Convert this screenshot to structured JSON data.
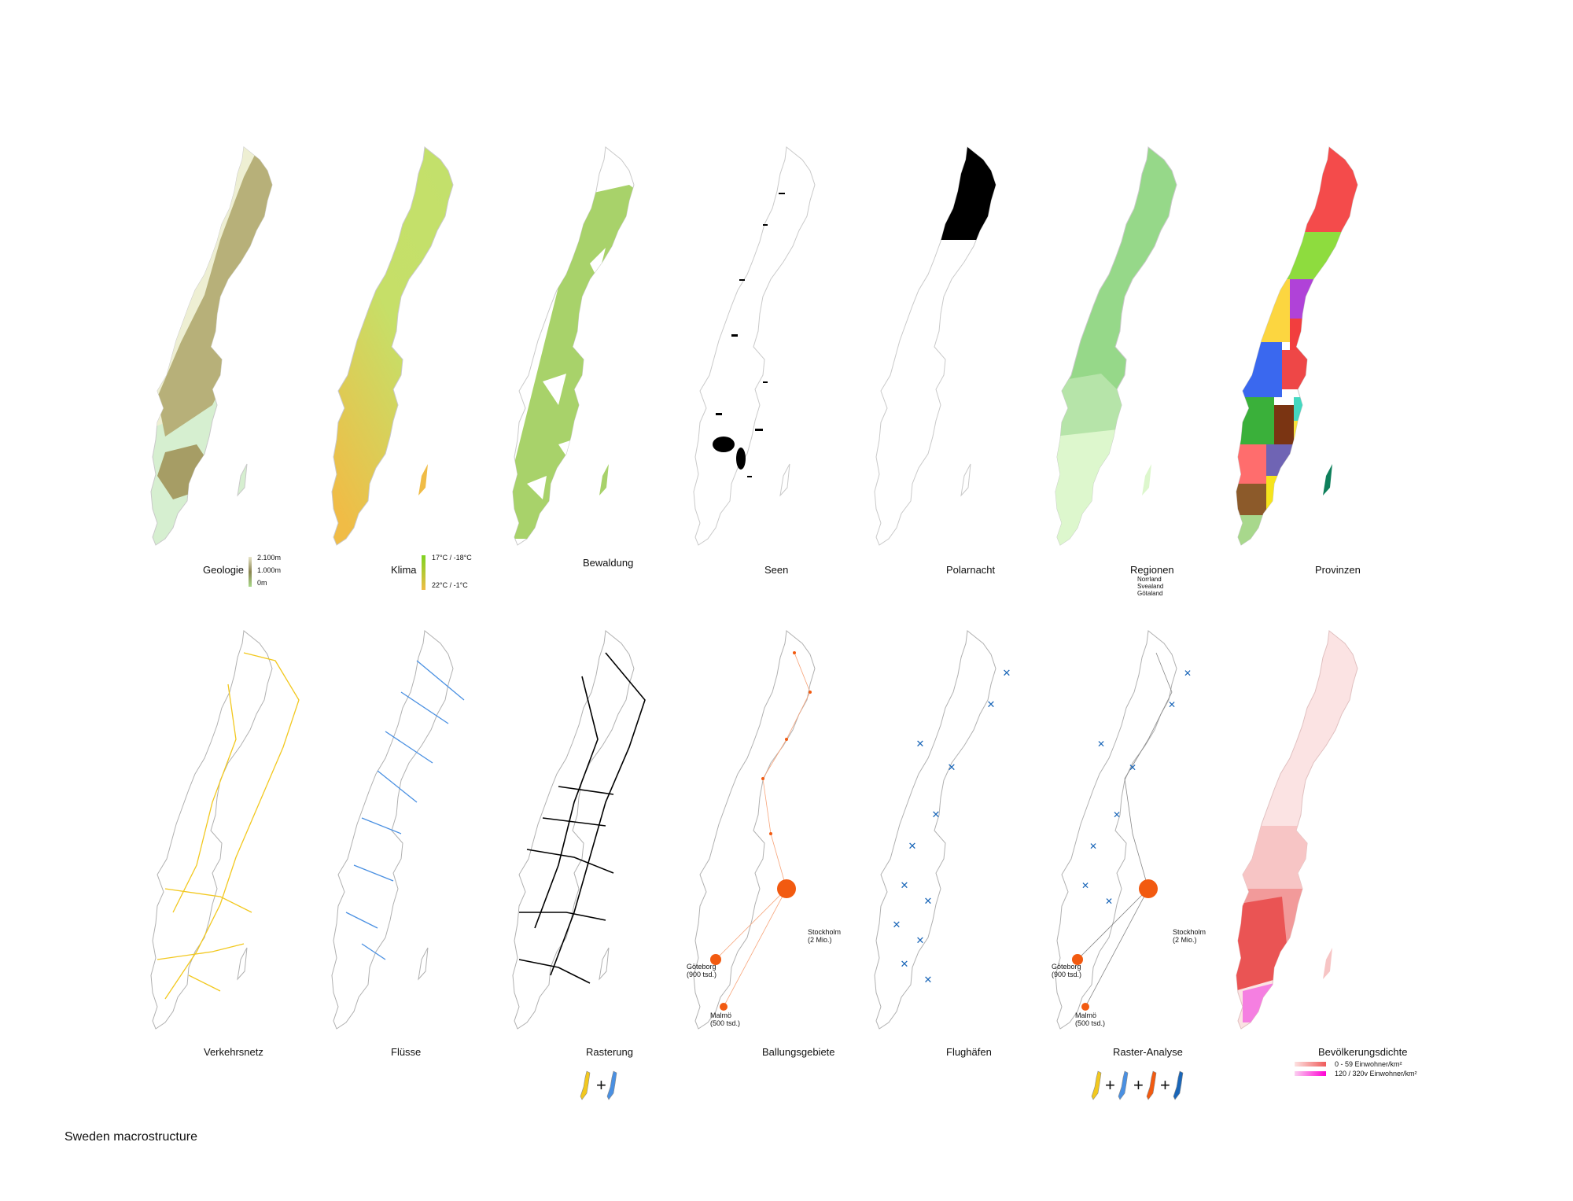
{
  "caption": "Sweden macrostructure",
  "colors": {
    "geology_high": "#8a8450",
    "geology_mid": "#b7b079",
    "geology_low": "#d6efd0",
    "climate_north": "#c3e06b",
    "climate_south": "#f0bc46",
    "forest": "#a8d26a",
    "lakes": "#000000",
    "polar_night": "#000000",
    "region_norrland": "#96d889",
    "region_svealand": "#b6e4a9",
    "region_gotaland": "#ddf7cd",
    "roads": "#f2c81f",
    "rivers": "#4a90e2",
    "grid": "#000000",
    "urban": "#f25a10",
    "airport": "#1a66b8",
    "density_low": "#fbe3e3",
    "density_high": "#ff00d4"
  },
  "top_row": [
    {
      "label": "Geologie",
      "legend": [
        "2.100m",
        "1.000m",
        "0m"
      ]
    },
    {
      "label": "Klima",
      "legend": [
        "17°C / -18°C",
        "22°C / -1°C"
      ]
    },
    {
      "label": "Bewaldung"
    },
    {
      "label": "Seen"
    },
    {
      "label": "Polarnacht"
    },
    {
      "label": "Regionen",
      "legend": [
        "Norrland",
        "Svealand",
        "Götaland"
      ]
    },
    {
      "label": "Provinzen"
    }
  ],
  "bottom_row": [
    {
      "label": "Verkehrsnetz"
    },
    {
      "label": "Flüsse"
    },
    {
      "label": "Rasterung"
    },
    {
      "label": "Ballungsgebiete"
    },
    {
      "label": "Flughäfen"
    },
    {
      "label": "Raster-Analyse"
    },
    {
      "label": "Bevölkerungsdichte",
      "legend": [
        "0 - 59  Einwohner/km²",
        "120 / 320v  Einwohner/km²"
      ]
    }
  ],
  "cities": {
    "stockholm": "Stockholm\n(2 Mio.)",
    "goteborg": "Göteborg\n(900 tsd.)",
    "malmo": "Malmö\n(500 tsd.)"
  },
  "plus": "+",
  "province_colors": [
    "#f44b4b",
    "#8edc3e",
    "#fcd640",
    "#b042d8",
    "#f23e3e",
    "#3a68ef",
    "#ee4747",
    "#3ab03a",
    "#7a3412",
    "#44d8c0",
    "#e94444",
    "#f7e33d",
    "#ff6d6d",
    "#6f64b4",
    "#ee6fa7",
    "#36c4ea",
    "#f6e41c",
    "#8c5a2a",
    "#a8d88c",
    "#0e7f5b"
  ]
}
